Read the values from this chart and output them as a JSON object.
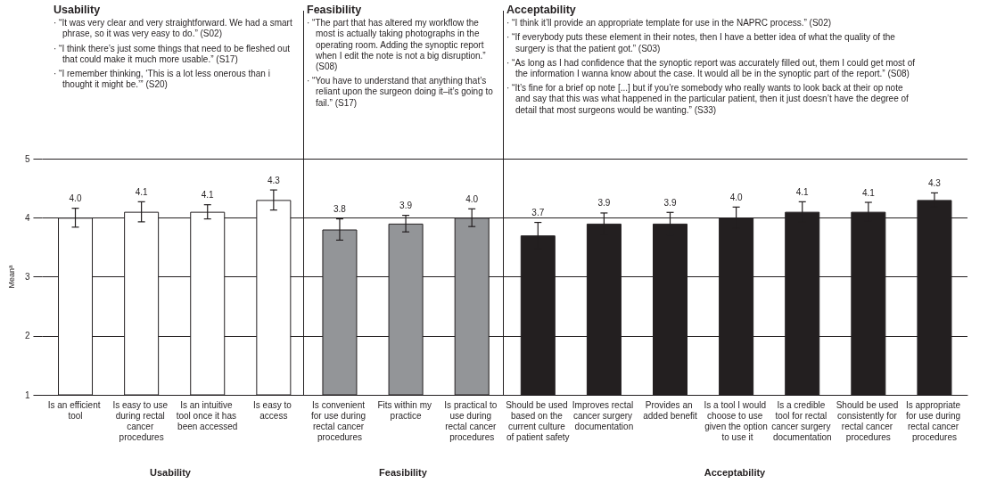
{
  "chart_data": {
    "type": "bar",
    "ylabel": "Meanᵃ",
    "categories": [
      "Is an efficient tool",
      "Is easy to use during rectal cancer procedures",
      "Is an intuitive tool once it has been accessed",
      "Is easy to access",
      "Is convenient for use during rectal cancer procedures",
      "Fits within my practice",
      "Is practical to use during rectal cancer procedures",
      "Should be used based on the current culture of patient safety",
      "Improves rectal cancer surgery documentation",
      "Provides an added benefit",
      "Is a tool I would choose to use given the option to use it",
      "Is a credible tool for rectal cancer surgery documentation",
      "Should be used consistently for rectal cancer procedures",
      "Is appropriate for use during rectal cancer procedures"
    ],
    "values": [
      4.0,
      4.1,
      4.1,
      4.3,
      3.8,
      3.9,
      4.0,
      3.7,
      3.9,
      3.9,
      4.0,
      4.1,
      4.1,
      4.3
    ],
    "value_labels": [
      "4.0",
      "4.1",
      "4.1",
      "4.3",
      "3.8",
      "3.9",
      "4.0",
      "3.7",
      "3.9",
      "3.9",
      "4.0",
      "4.1",
      "4.1",
      "4.3"
    ],
    "errors": [
      0.16,
      0.17,
      0.12,
      0.17,
      0.18,
      0.14,
      0.15,
      0.22,
      0.18,
      0.19,
      0.18,
      0.17,
      0.16,
      0.12
    ],
    "colors": [
      "#ffffff",
      "#ffffff",
      "#ffffff",
      "#ffffff",
      "#939598",
      "#939598",
      "#939598",
      "#231f20",
      "#231f20",
      "#231f20",
      "#231f20",
      "#231f20",
      "#231f20",
      "#231f20"
    ],
    "ylim": [
      1,
      5
    ],
    "yticks": [
      1,
      2,
      3,
      4,
      5
    ],
    "grid": "y",
    "annotations": [
      "Usability",
      "· “It was very clear and very straightforward. We had a smart phrase, so it was very easy to do.” (S02)",
      "· “I think there’s just some things that need to be fleshed out that could make it much more usable.” (S17)",
      "· “I remember thinking, ‘This is a lot less onerous than i thought it might be.’” (S20)",
      "Feasibility",
      "· “The part that has altered my workflow the most is actually taking photographs in the operating room. Adding the synoptic report when I edit the note is not a big disruption.” (S08)",
      "· “You have to understand that anything that’s reliant upon the surgeon doing it–it’s going to fail.” (S17)",
      "Acceptability",
      "· “I think it’ll provide an appropriate template for use in the NAPRC process.” (S02)",
      "· “If everybody puts these element in their notes, then I have a better idea of what the quality of the surgery is that the patient got.” (S03)",
      "· “As long as I had confidence that the synoptic report was accurately filled out, them I could get most of the information I wanna know about the case. It would all be in the synoptic part of the report.” (S08)",
      "· “It’s fine for a brief op note [...] but if you’re somebody who really wants to look back at their op note and say that this was what happened in the particular patient, then it just doesn’t have the degree of detail that most surgeons would be wanting.” (S33)",
      "Usability",
      "Feasibility",
      "Acceptability"
    ]
  }
}
